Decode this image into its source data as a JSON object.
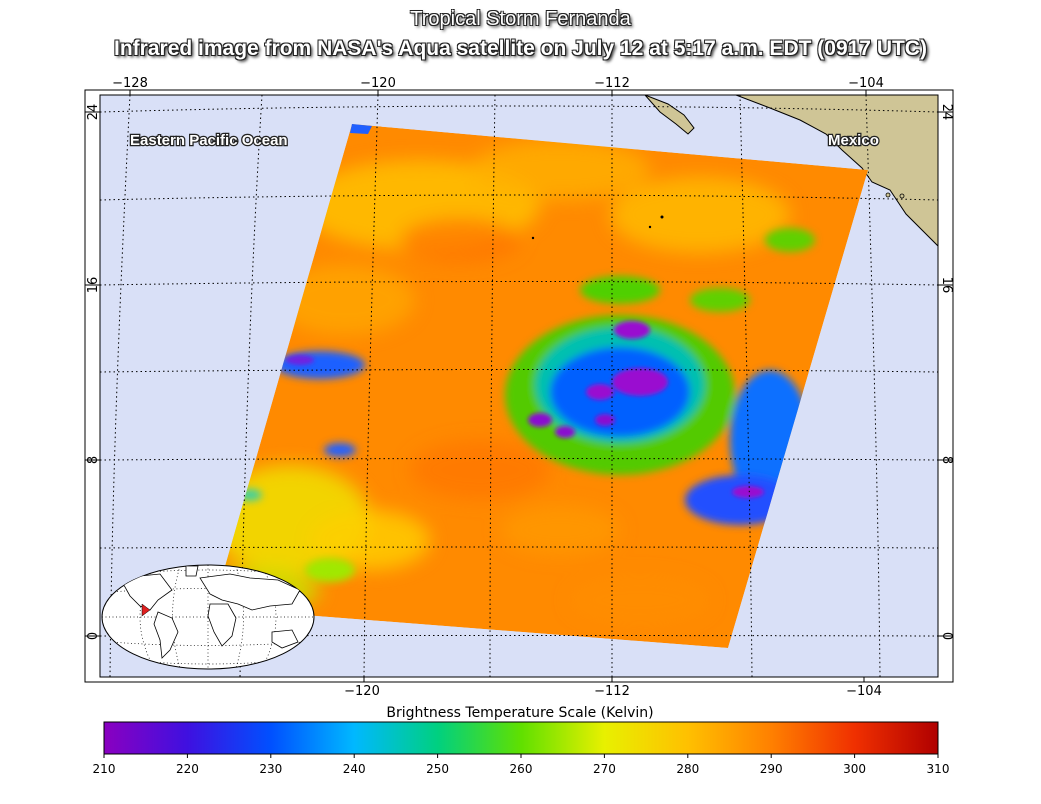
{
  "header": {
    "title": "Tropical Storm Fernanda",
    "subtitle": "Infrared image from NASA's Aqua satellite on July 12 at 5:17 a.m. EDT (0917 UTC)"
  },
  "map": {
    "ocean_color": "#d9e0f7",
    "land_color": "#cfc596",
    "labels": {
      "ocean": "Eastern Pacific Ocean",
      "country": "Mexico"
    },
    "longitude_ticks_top": [
      "−128",
      "−120",
      "−112",
      "−104"
    ],
    "longitude_ticks_bottom": [
      "−120",
      "−112",
      "−104"
    ],
    "latitude_ticks": [
      "24",
      "16",
      "8",
      "0"
    ],
    "storm_name": "Fernanda"
  },
  "inset_globe": {
    "marker_color": "#e02020"
  },
  "color_scale": {
    "title": "Brightness Temperature Scale (Kelvin)",
    "ticks": [
      "210",
      "220",
      "230",
      "240",
      "250",
      "260",
      "270",
      "280",
      "290",
      "300",
      "310"
    ],
    "min": 210,
    "max": 310,
    "colors": [
      "#8a00c0",
      "#3f10e0",
      "#0050ff",
      "#00b8ff",
      "#00d080",
      "#60e000",
      "#e8f000",
      "#ffc000",
      "#ff8000",
      "#f03000",
      "#b00000"
    ]
  }
}
